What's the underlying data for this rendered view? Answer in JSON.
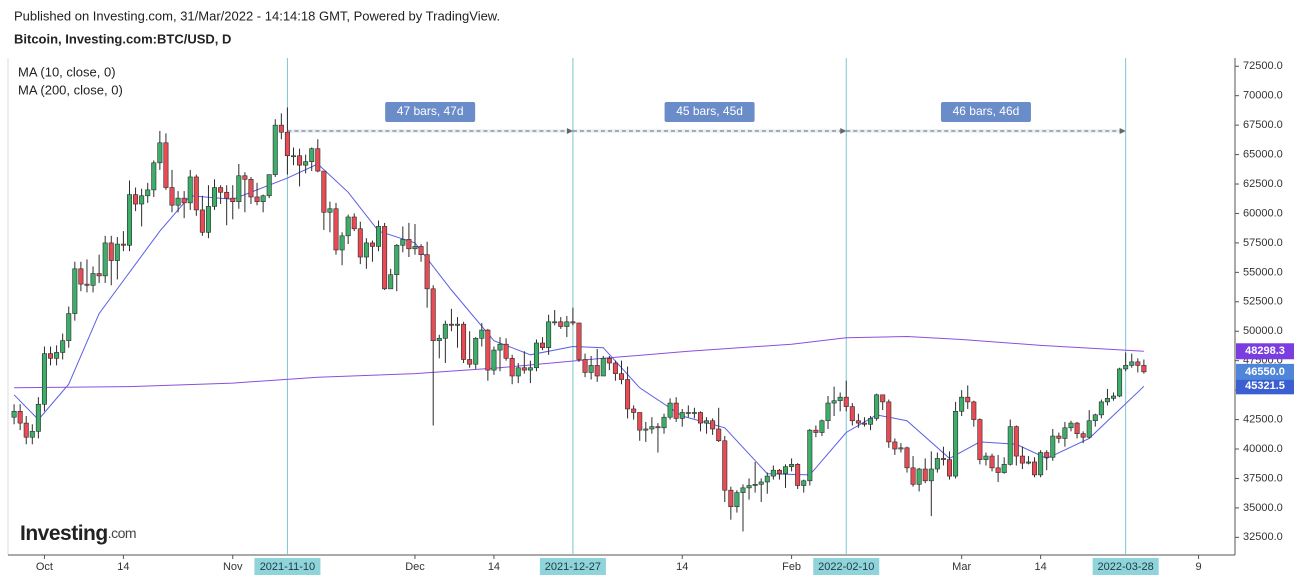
{
  "header": {
    "published": "Published on Investing.com, 31/Mar/2022 - 14:14:18 GMT, Powered by TradingView.",
    "logo": {
      "main": "Investing",
      "suffix": ".com"
    }
  },
  "chart_data": {
    "type": "candlestick",
    "title": "Bitcoin, Investing.com:BTC/USD, D",
    "up_color": "#3dae6a",
    "down_color": "#e94b55",
    "border_color": "#2b2b2b",
    "xlim": [
      "2021-09-25",
      "2022-04-15"
    ],
    "ylim": [
      31000,
      73200
    ],
    "yticks": [
      {
        "value": 32500,
        "label": "32500.0"
      },
      {
        "value": 35000,
        "label": "35000.0"
      },
      {
        "value": 37500,
        "label": "37500.0"
      },
      {
        "value": 40000,
        "label": "40000.0"
      },
      {
        "value": 42500,
        "label": "42500.0"
      },
      {
        "value": 45000,
        "label": "45000.0"
      },
      {
        "value": 47500,
        "label": "47500.0"
      },
      {
        "value": 50000,
        "label": "50000.0"
      },
      {
        "value": 52500,
        "label": "52500.0"
      },
      {
        "value": 55000,
        "label": "55000.0"
      },
      {
        "value": 57500,
        "label": "57500.0"
      },
      {
        "value": 60000,
        "label": "60000.0"
      },
      {
        "value": 62500,
        "label": "62500.0"
      },
      {
        "value": 65000,
        "label": "65000.0"
      },
      {
        "value": 67500,
        "label": "67500.0"
      },
      {
        "value": 70000,
        "label": "70000.0"
      },
      {
        "value": 72500,
        "label": "72500.0"
      }
    ],
    "xticks": [
      {
        "value": "2021-10-01",
        "label": "Oct"
      },
      {
        "value": "2021-10-14",
        "label": "14"
      },
      {
        "value": "2021-11-01",
        "label": "Nov"
      },
      {
        "value": "2021-12-01",
        "label": "Dec"
      },
      {
        "value": "2021-12-14",
        "label": "14"
      },
      {
        "value": "2022-01-14",
        "label": "14"
      },
      {
        "value": "2022-02-01",
        "label": "Feb"
      },
      {
        "value": "2022-03-01",
        "label": "Mar"
      },
      {
        "value": "2022-03-14",
        "label": "14"
      },
      {
        "value": "2022-04-09",
        "label": "9"
      }
    ],
    "x": [
      "2021-09-26",
      "2021-09-27",
      "2021-09-28",
      "2021-09-29",
      "2021-09-30",
      "2021-10-01",
      "2021-10-02",
      "2021-10-03",
      "2021-10-04",
      "2021-10-05",
      "2021-10-06",
      "2021-10-07",
      "2021-10-08",
      "2021-10-09",
      "2021-10-10",
      "2021-10-11",
      "2021-10-12",
      "2021-10-13",
      "2021-10-14",
      "2021-10-15",
      "2021-10-16",
      "2021-10-17",
      "2021-10-18",
      "2021-10-19",
      "2021-10-20",
      "2021-10-21",
      "2021-10-22",
      "2021-10-23",
      "2021-10-24",
      "2021-10-25",
      "2021-10-26",
      "2021-10-27",
      "2021-10-28",
      "2021-10-29",
      "2021-10-30",
      "2021-10-31",
      "2021-11-01",
      "2021-11-02",
      "2021-11-03",
      "2021-11-04",
      "2021-11-05",
      "2021-11-06",
      "2021-11-07",
      "2021-11-08",
      "2021-11-09",
      "2021-11-10",
      "2021-11-11",
      "2021-11-12",
      "2021-11-13",
      "2021-11-14",
      "2021-11-15",
      "2021-11-16",
      "2021-11-17",
      "2021-11-18",
      "2021-11-19",
      "2021-11-20",
      "2021-11-21",
      "2021-11-22",
      "2021-11-23",
      "2021-11-24",
      "2021-11-25",
      "2021-11-26",
      "2021-11-27",
      "2021-11-28",
      "2021-11-29",
      "2021-11-30",
      "2021-12-01",
      "2021-12-02",
      "2021-12-03",
      "2021-12-04",
      "2021-12-05",
      "2021-12-06",
      "2021-12-07",
      "2021-12-08",
      "2021-12-09",
      "2021-12-10",
      "2021-12-11",
      "2021-12-12",
      "2021-12-13",
      "2021-12-14",
      "2021-12-15",
      "2021-12-16",
      "2021-12-17",
      "2021-12-18",
      "2021-12-19",
      "2021-12-20",
      "2021-12-21",
      "2021-12-22",
      "2021-12-23",
      "2021-12-24",
      "2021-12-25",
      "2021-12-26",
      "2021-12-27",
      "2021-12-28",
      "2021-12-29",
      "2021-12-30",
      "2021-12-31",
      "2022-01-01",
      "2022-01-02",
      "2022-01-03",
      "2022-01-04",
      "2022-01-05",
      "2022-01-06",
      "2022-01-07",
      "2022-01-08",
      "2022-01-09",
      "2022-01-10",
      "2022-01-11",
      "2022-01-12",
      "2022-01-13",
      "2022-01-14",
      "2022-01-15",
      "2022-01-16",
      "2022-01-17",
      "2022-01-18",
      "2022-01-19",
      "2022-01-20",
      "2022-01-21",
      "2022-01-22",
      "2022-01-23",
      "2022-01-24",
      "2022-01-25",
      "2022-01-26",
      "2022-01-27",
      "2022-01-28",
      "2022-01-29",
      "2022-01-30",
      "2022-01-31",
      "2022-02-01",
      "2022-02-02",
      "2022-02-03",
      "2022-02-04",
      "2022-02-05",
      "2022-02-06",
      "2022-02-07",
      "2022-02-08",
      "2022-02-09",
      "2022-02-10",
      "2022-02-11",
      "2022-02-12",
      "2022-02-13",
      "2022-02-14",
      "2022-02-15",
      "2022-02-16",
      "2022-02-17",
      "2022-02-18",
      "2022-02-19",
      "2022-02-20",
      "2022-02-21",
      "2022-02-22",
      "2022-02-23",
      "2022-02-24",
      "2022-02-25",
      "2022-02-26",
      "2022-02-27",
      "2022-02-28",
      "2022-03-01",
      "2022-03-02",
      "2022-03-03",
      "2022-03-04",
      "2022-03-05",
      "2022-03-06",
      "2022-03-07",
      "2022-03-08",
      "2022-03-09",
      "2022-03-10",
      "2022-03-11",
      "2022-03-12",
      "2022-03-13",
      "2022-03-14",
      "2022-03-15",
      "2022-03-16",
      "2022-03-17",
      "2022-03-18",
      "2022-03-19",
      "2022-03-20",
      "2022-03-21",
      "2022-03-22",
      "2022-03-23",
      "2022-03-24",
      "2022-03-25",
      "2022-03-26",
      "2022-03-27",
      "2022-03-28",
      "2022-03-29",
      "2022-03-30",
      "2022-03-31"
    ],
    "open": [
      42700,
      43200,
      42200,
      41000,
      41500,
      43800,
      48100,
      47700,
      48200,
      49200,
      51500,
      55300,
      54000,
      53900,
      54900,
      54700,
      57500,
      56000,
      57400,
      57300,
      61600,
      60800,
      61500,
      62000,
      64300,
      66000,
      62200,
      60700,
      61300,
      60900,
      63100,
      60300,
      58400,
      60600,
      62200,
      61800,
      61300,
      61000,
      63200,
      62900,
      61400,
      61000,
      61500,
      63300,
      67500,
      66900,
      64900,
      64900,
      64100,
      64400,
      65500,
      63600,
      60100,
      60400,
      56900,
      58100,
      59700,
      58700,
      56300,
      57500,
      57200,
      58900,
      53600,
      54800,
      57300,
      57800,
      57000,
      57200,
      56500,
      53600,
      49200,
      49400,
      50600,
      50500,
      50600,
      47600,
      47200,
      49400,
      50100,
      46700,
      48400,
      48900,
      47700,
      46200,
      46900,
      46700,
      46900,
      49000,
      48600,
      50800,
      50800,
      50400,
      50800,
      50700,
      47600,
      46500,
      47100,
      46200,
      47700,
      47300,
      46400,
      45900,
      43400,
      43100,
      41600,
      41700,
      41900,
      41800,
      42700,
      43900,
      42600,
      43100,
      43100,
      43100,
      42200,
      42400,
      41700,
      40700,
      36500,
      35100,
      36300,
      36700,
      36900,
      37000,
      37200,
      37700,
      38200,
      37900,
      38500,
      38700,
      36900,
      37300,
      41600,
      41400,
      42400,
      43900,
      44100,
      44400,
      43600,
      42400,
      42200,
      42100,
      42600,
      44600,
      44000,
      40600,
      40000,
      40100,
      38400,
      37000,
      38300,
      37300,
      38300,
      39200,
      39100,
      37700,
      43200,
      44400,
      44000,
      42500,
      39100,
      39400,
      38400,
      38000,
      38700,
      41900,
      39400,
      38800,
      38900,
      37800,
      39700,
      39300,
      41100,
      40900,
      41800,
      42200,
      41300,
      41000,
      42400,
      42900,
      44000,
      44300,
      44500,
      46800,
      47100,
      47400,
      47100
    ],
    "high": [
      43800,
      43800,
      42800,
      42100,
      44400,
      48700,
      48700,
      48800,
      49800,
      52100,
      55900,
      55900,
      56100,
      55500,
      56500,
      58100,
      58100,
      58000,
      58500,
      62800,
      62200,
      62100,
      62600,
      64500,
      67000,
      66800,
      63700,
      61900,
      61900,
      63700,
      63300,
      61500,
      62400,
      62900,
      62400,
      62400,
      62400,
      64200,
      63500,
      63100,
      62600,
      61600,
      63300,
      68000,
      68500,
      69000,
      65600,
      65500,
      65000,
      65600,
      66300,
      63600,
      61000,
      60900,
      58400,
      59900,
      60000,
      59300,
      57900,
      57700,
      59400,
      59200,
      55300,
      57400,
      58900,
      59200,
      59100,
      57400,
      57600,
      53900,
      49700,
      50900,
      51900,
      51200,
      50800,
      50000,
      49500,
      50700,
      50200,
      48700,
      49500,
      49400,
      48000,
      47300,
      48300,
      47500,
      49300,
      49500,
      51400,
      51800,
      51200,
      51300,
      52000,
      50700,
      48100,
      47900,
      48500,
      47900,
      47900,
      47500,
      47500,
      47000,
      43700,
      43100,
      42300,
      42700,
      42200,
      43000,
      44300,
      44400,
      43400,
      43700,
      43500,
      43200,
      42700,
      42600,
      43500,
      41100,
      36800,
      36500,
      37000,
      37500,
      38900,
      37500,
      38000,
      38600,
      38300,
      38700,
      39200,
      38800,
      37400,
      41700,
      42000,
      42500,
      44500,
      45300,
      44800,
      45800,
      43900,
      43000,
      42700,
      42800,
      44700,
      44600,
      44200,
      40900,
      40500,
      40200,
      39400,
      38400,
      39200,
      39800,
      39700,
      40200,
      39800,
      44000,
      45000,
      45400,
      44100,
      42600,
      39700,
      39600,
      39500,
      39300,
      42500,
      42000,
      40200,
      39400,
      39300,
      39900,
      39900,
      41700,
      41400,
      42300,
      42400,
      42300,
      41500,
      43300,
      43000,
      44200,
      45100,
      44800,
      46900,
      48200,
      48100,
      47700,
      47600
    ],
    "low": [
      42100,
      41600,
      40400,
      40400,
      40900,
      43200,
      47100,
      47100,
      47600,
      48600,
      50900,
      53400,
      53300,
      53300,
      54100,
      54100,
      53900,
      54400,
      56800,
      56800,
      60200,
      58900,
      60900,
      61400,
      63700,
      62000,
      60100,
      60100,
      59600,
      60300,
      59800,
      58100,
      57900,
      60300,
      60800,
      59000,
      59500,
      60400,
      60100,
      60800,
      60700,
      60100,
      61300,
      63100,
      66300,
      63300,
      64100,
      62300,
      63400,
      63600,
      63500,
      58600,
      58400,
      56500,
      55600,
      57400,
      58500,
      55700,
      55300,
      55900,
      56800,
      53500,
      53600,
      53400,
      56700,
      56300,
      56500,
      55900,
      52000,
      42000,
      47700,
      47300,
      50000,
      48600,
      47300,
      46900,
      46800,
      48700,
      45800,
      46300,
      46600,
      47500,
      45500,
      45600,
      46400,
      45600,
      46600,
      48400,
      48000,
      50500,
      50200,
      49500,
      50500,
      47400,
      46100,
      45900,
      45700,
      46200,
      46700,
      45800,
      45500,
      42600,
      42500,
      40700,
      40600,
      41300,
      39700,
      41300,
      42500,
      42300,
      41900,
      42700,
      42600,
      41500,
      41300,
      41200,
      40600,
      35500,
      34000,
      34600,
      33000,
      35700,
      36300,
      35500,
      36200,
      37400,
      37400,
      36700,
      38100,
      36600,
      36300,
      36900,
      41000,
      41100,
      41700,
      42800,
      43200,
      43200,
      42000,
      41800,
      41900,
      41600,
      42400,
      43300,
      40100,
      39500,
      39700,
      38000,
      36800,
      36400,
      37100,
      34300,
      38000,
      38600,
      37400,
      37500,
      42800,
      43400,
      41900,
      38700,
      38600,
      38100,
      37200,
      37900,
      38600,
      38600,
      38300,
      38700,
      37600,
      37600,
      38200,
      39000,
      40500,
      40200,
      41500,
      40900,
      40500,
      40900,
      41900,
      42600,
      43700,
      44100,
      44400,
      46600,
      46900,
      46500,
      46400
    ],
    "close": [
      43200,
      42200,
      41000,
      41500,
      43800,
      48100,
      47700,
      48200,
      49200,
      51500,
      55300,
      54000,
      53900,
      54900,
      54700,
      57500,
      56000,
      57400,
      57300,
      61600,
      60800,
      61500,
      62000,
      64300,
      66000,
      62200,
      60700,
      61300,
      60900,
      63100,
      60300,
      58400,
      60600,
      62200,
      61800,
      61300,
      61000,
      63200,
      62900,
      61400,
      61000,
      61500,
      63300,
      67500,
      66900,
      64900,
      64900,
      64100,
      64400,
      65500,
      63600,
      60100,
      60400,
      56900,
      58100,
      59700,
      58700,
      56300,
      57500,
      57200,
      58900,
      53600,
      54800,
      57300,
      57800,
      57000,
      57200,
      56500,
      53600,
      49200,
      49400,
      50600,
      50500,
      50600,
      47600,
      47200,
      49400,
      50100,
      46700,
      48400,
      48900,
      47700,
      46200,
      46900,
      46700,
      46900,
      49000,
      48600,
      50800,
      50800,
      50400,
      50800,
      50700,
      47600,
      46500,
      47100,
      46200,
      47700,
      47300,
      46400,
      45900,
      43400,
      43100,
      41600,
      41700,
      41900,
      41800,
      42700,
      43900,
      42600,
      43100,
      43100,
      43100,
      42200,
      42400,
      41700,
      40700,
      36500,
      35100,
      36300,
      36700,
      36900,
      37000,
      37200,
      37700,
      38200,
      37900,
      38500,
      38700,
      36900,
      37300,
      41600,
      41400,
      42400,
      43900,
      44100,
      44400,
      43600,
      42400,
      42200,
      42100,
      42600,
      44600,
      44000,
      40600,
      40000,
      40100,
      38400,
      37000,
      38300,
      37300,
      38300,
      39200,
      39100,
      37700,
      43200,
      44400,
      44000,
      42500,
      39100,
      39400,
      38400,
      38000,
      38700,
      41900,
      39400,
      38800,
      38900,
      37800,
      39700,
      39300,
      41100,
      40900,
      41800,
      42200,
      41300,
      41000,
      42400,
      42900,
      44000,
      44300,
      44500,
      46800,
      47100,
      47400,
      47100,
      46550
    ],
    "last_price": {
      "value": 46550,
      "label": "46550.0",
      "color": "#4f86d9"
    },
    "series": [
      {
        "name": "MA (10, close, 0)",
        "color": "#5a5ee8",
        "label_color": "#3b5fd0",
        "last_label": "45321.5",
        "x": [
          "2021-09-26",
          "2021-09-30",
          "2021-10-05",
          "2021-10-10",
          "2021-10-15",
          "2021-10-20",
          "2021-10-25",
          "2021-11-01",
          "2021-11-10",
          "2021-11-15",
          "2021-11-20",
          "2021-11-25",
          "2021-12-01",
          "2021-12-07",
          "2021-12-14",
          "2021-12-20",
          "2021-12-27",
          "2022-01-01",
          "2022-01-07",
          "2022-01-14",
          "2022-01-21",
          "2022-01-28",
          "2022-02-04",
          "2022-02-10",
          "2022-02-15",
          "2022-02-20",
          "2022-02-27",
          "2022-03-04",
          "2022-03-10",
          "2022-03-15",
          "2022-03-22",
          "2022-03-31"
        ],
        "values": [
          44600,
          42500,
          45500,
          51500,
          55000,
          58500,
          61500,
          61200,
          63000,
          64200,
          61800,
          58500,
          57500,
          53500,
          49200,
          48000,
          48700,
          48600,
          45200,
          42800,
          41800,
          37900,
          37800,
          41400,
          42900,
          42400,
          39200,
          40600,
          40400,
          39200,
          40900,
          45321.5
        ]
      },
      {
        "name": "MA (200, close, 0)",
        "color": "#8a4fe0",
        "label_color": "#7a3ddf",
        "last_label": "48298.3",
        "x": [
          "2021-09-26",
          "2021-10-15",
          "2021-11-01",
          "2021-11-15",
          "2021-12-01",
          "2021-12-15",
          "2022-01-01",
          "2022-01-15",
          "2022-02-01",
          "2022-02-10",
          "2022-02-20",
          "2022-03-01",
          "2022-03-14",
          "2022-03-31"
        ],
        "values": [
          45200,
          45300,
          45600,
          46100,
          46400,
          46900,
          47700,
          48300,
          48900,
          49450,
          49550,
          49300,
          48800,
          48298.3
        ]
      }
    ],
    "markers": [
      "2021-11-10",
      "2021-12-27",
      "2022-02-10",
      "2022-03-28"
    ],
    "measurements": [
      {
        "from": "2021-11-10",
        "to": "2021-12-27",
        "price": 67000,
        "label": "47 bars, 47d"
      },
      {
        "from": "2021-12-27",
        "to": "2022-02-10",
        "price": 67000,
        "label": "45 bars, 45d"
      },
      {
        "from": "2022-02-10",
        "to": "2022-03-28",
        "price": 67000,
        "label": "46 bars, 46d"
      }
    ]
  }
}
